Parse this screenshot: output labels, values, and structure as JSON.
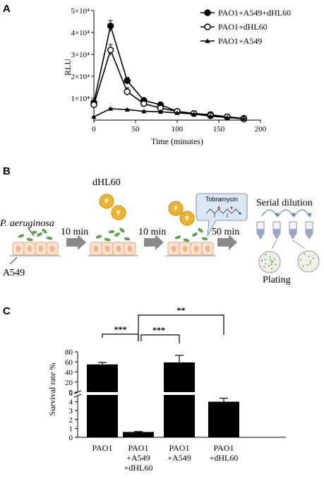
{
  "panels": {
    "a": {
      "letter": "A"
    },
    "b": {
      "letter": "B"
    },
    "c": {
      "letter": "C"
    }
  },
  "chart_data": [
    {
      "type": "line",
      "title": "",
      "xlabel": "Time (minutes)",
      "ylabel": "RLU",
      "xlim": [
        0,
        200
      ],
      "ylim": [
        0,
        50000
      ],
      "x_ticks": [
        0,
        50,
        100,
        150,
        200
      ],
      "y_tick_labels": [
        {
          "value": 10000,
          "label": "1×10⁴"
        },
        {
          "value": 20000,
          "label": "2×10⁴"
        },
        {
          "value": 30000,
          "label": "3×10⁴"
        },
        {
          "value": 40000,
          "label": "4×10⁴"
        },
        {
          "value": 50000,
          "label": "5×10⁴"
        }
      ],
      "legend_position": "top-right",
      "series": [
        {
          "name": "PAO1+A549+dHL60",
          "marker": "filled-circle",
          "x": [
            0,
            20,
            40,
            60,
            80,
            100,
            120,
            140,
            160,
            180
          ],
          "y": [
            8000,
            43000,
            18000,
            9000,
            7000,
            4000,
            3000,
            2500,
            1500,
            800
          ],
          "err": [
            2000,
            2500,
            1500,
            800,
            700,
            500,
            400,
            300,
            200,
            150
          ]
        },
        {
          "name": "PAO1+dHL60",
          "marker": "open-circle",
          "x": [
            0,
            20,
            40,
            60,
            80,
            100,
            120,
            140,
            160,
            180
          ],
          "y": [
            7000,
            32000,
            13000,
            7500,
            5500,
            4000,
            3000,
            2000,
            1500,
            500
          ],
          "err": [
            1500,
            2500,
            1800,
            800,
            700,
            500,
            400,
            300,
            200,
            150
          ]
        },
        {
          "name": "PAO1+A549",
          "marker": "filled-triangle",
          "x": [
            0,
            20,
            40,
            60,
            80,
            100,
            120,
            140,
            160,
            180
          ],
          "y": [
            1500,
            5200,
            4800,
            4000,
            3800,
            3300,
            2800,
            1800,
            1200,
            600
          ],
          "err": [
            200,
            300,
            300,
            250,
            250,
            200,
            200,
            150,
            150,
            100
          ]
        }
      ]
    },
    {
      "type": "bar",
      "title": "",
      "xlabel": "",
      "ylabel": "Survival rate %",
      "broken_axis": true,
      "lower_ylim": [
        0,
        5
      ],
      "lower_ticks": [
        0,
        1,
        2,
        3,
        4,
        5
      ],
      "upper_ylim": [
        0,
        80
      ],
      "upper_ticks": [
        0,
        20,
        40,
        60,
        80
      ],
      "categories": [
        [
          "PAO1"
        ],
        [
          "PAO1",
          "+A549",
          "+dHL60"
        ],
        [
          "PAO1",
          "+A549"
        ],
        [
          "PAO1",
          "+dHL60"
        ]
      ],
      "values": [
        55,
        0.6,
        59,
        4.0
      ],
      "errors": [
        4,
        0.05,
        14,
        0.4
      ],
      "significance": [
        {
          "from": 0,
          "to": 1,
          "label": "***"
        },
        {
          "from": 1,
          "to": 2,
          "label": "***"
        },
        {
          "from": 1,
          "to": 3,
          "label": "**"
        }
      ]
    }
  ],
  "schematic": {
    "bacteria_label": "P. aeruginosa",
    "cells_label": "A549",
    "neutrophil_label": "dHL60",
    "drug_label": "Tobramycin",
    "step1_time": "10 min",
    "step2_time": "10 min",
    "step3_time": "50 min",
    "serial_dilution_label": "Serial dilution",
    "plating_label": "Plating",
    "colors": {
      "cell_fill": "#fbe3d2",
      "cell_stroke": "#e8a070",
      "bacteria": "#62a84a",
      "neutrophil": "#f0b428",
      "arrow": "#888888",
      "tube": "#9aa8c8",
      "callout": "#d8e8f8"
    }
  }
}
